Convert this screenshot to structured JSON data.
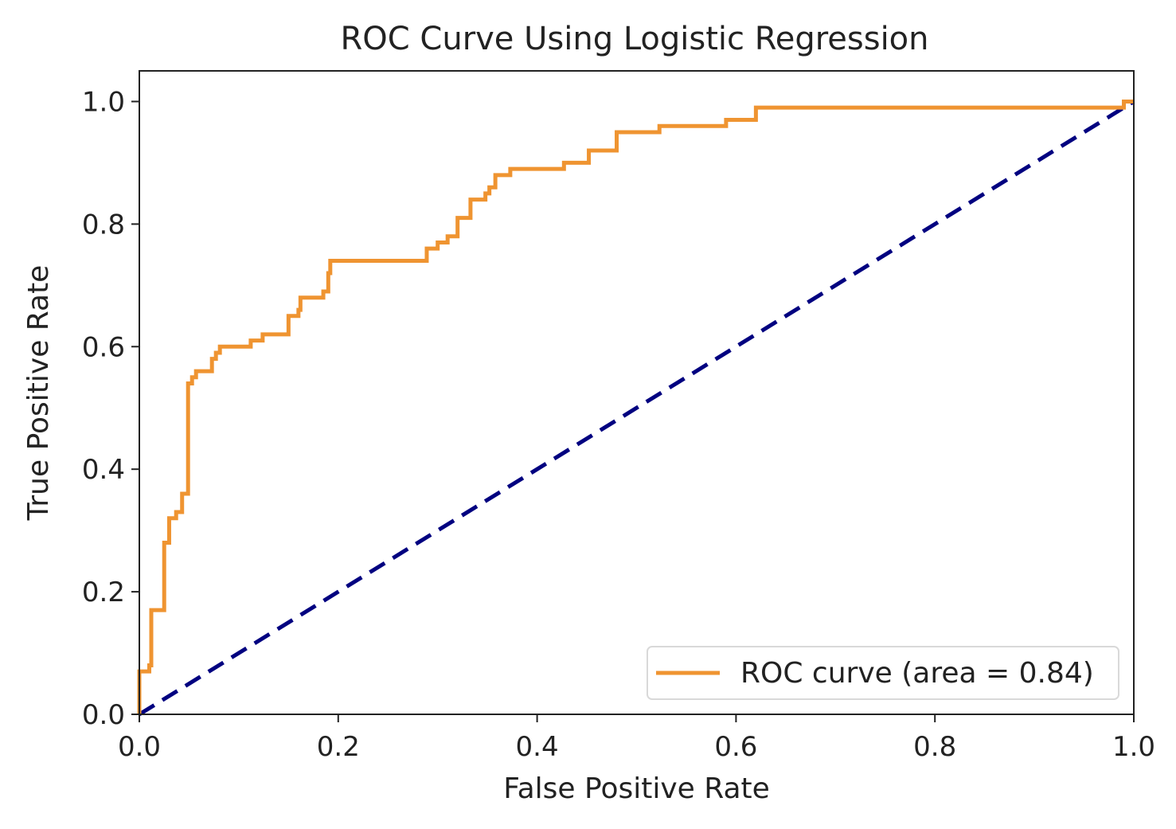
{
  "chart_data": {
    "type": "line",
    "title": "ROC Curve Using Logistic Regression",
    "xlabel": "False Positive Rate",
    "ylabel": "True Positive Rate",
    "xlim": [
      0.0,
      1.0
    ],
    "ylim": [
      0.0,
      1.05
    ],
    "x_ticks": [
      "0.0",
      "0.2",
      "0.4",
      "0.6",
      "0.8",
      "1.0"
    ],
    "y_ticks": [
      "0.0",
      "0.2",
      "0.4",
      "0.6",
      "0.8",
      "1.0"
    ],
    "grid": false,
    "legend_position": "lower-right",
    "series": [
      {
        "name": "ROC curve (area = 0.84)",
        "color": "#ef9431",
        "style": "solid",
        "x": [
          0.0,
          0.0,
          0.01,
          0.01,
          0.012,
          0.012,
          0.025,
          0.025,
          0.03,
          0.03,
          0.037,
          0.037,
          0.043,
          0.043,
          0.049,
          0.049,
          0.053,
          0.053,
          0.057,
          0.057,
          0.073,
          0.073,
          0.077,
          0.077,
          0.081,
          0.081,
          0.112,
          0.112,
          0.124,
          0.124,
          0.15,
          0.15,
          0.16,
          0.16,
          0.162,
          0.162,
          0.185,
          0.185,
          0.19,
          0.19,
          0.192,
          0.192,
          0.289,
          0.289,
          0.3,
          0.3,
          0.31,
          0.31,
          0.32,
          0.32,
          0.333,
          0.333,
          0.348,
          0.348,
          0.352,
          0.352,
          0.358,
          0.358,
          0.373,
          0.373,
          0.427,
          0.427,
          0.452,
          0.452,
          0.48,
          0.48,
          0.523,
          0.523,
          0.59,
          0.59,
          0.62,
          0.62,
          0.99,
          0.99,
          1.0
        ],
        "y": [
          0.0,
          0.07,
          0.07,
          0.08,
          0.08,
          0.17,
          0.17,
          0.28,
          0.28,
          0.32,
          0.32,
          0.33,
          0.33,
          0.36,
          0.36,
          0.54,
          0.54,
          0.55,
          0.55,
          0.56,
          0.56,
          0.58,
          0.58,
          0.59,
          0.59,
          0.6,
          0.6,
          0.61,
          0.61,
          0.62,
          0.62,
          0.65,
          0.65,
          0.66,
          0.66,
          0.68,
          0.68,
          0.69,
          0.69,
          0.72,
          0.72,
          0.74,
          0.74,
          0.76,
          0.76,
          0.77,
          0.77,
          0.78,
          0.78,
          0.81,
          0.81,
          0.84,
          0.84,
          0.85,
          0.85,
          0.86,
          0.86,
          0.88,
          0.88,
          0.89,
          0.89,
          0.9,
          0.9,
          0.92,
          0.92,
          0.95,
          0.95,
          0.96,
          0.96,
          0.97,
          0.97,
          0.99,
          0.99,
          1.0,
          1.0
        ]
      },
      {
        "color": "#000080",
        "style": "dashed",
        "x": [
          0.0,
          1.0
        ],
        "y": [
          0.0,
          1.0
        ]
      }
    ]
  },
  "colors": {
    "roc": "#ef9431",
    "diagonal": "#000080",
    "axes": "#222222",
    "legend_border": "#d9d9d9"
  }
}
